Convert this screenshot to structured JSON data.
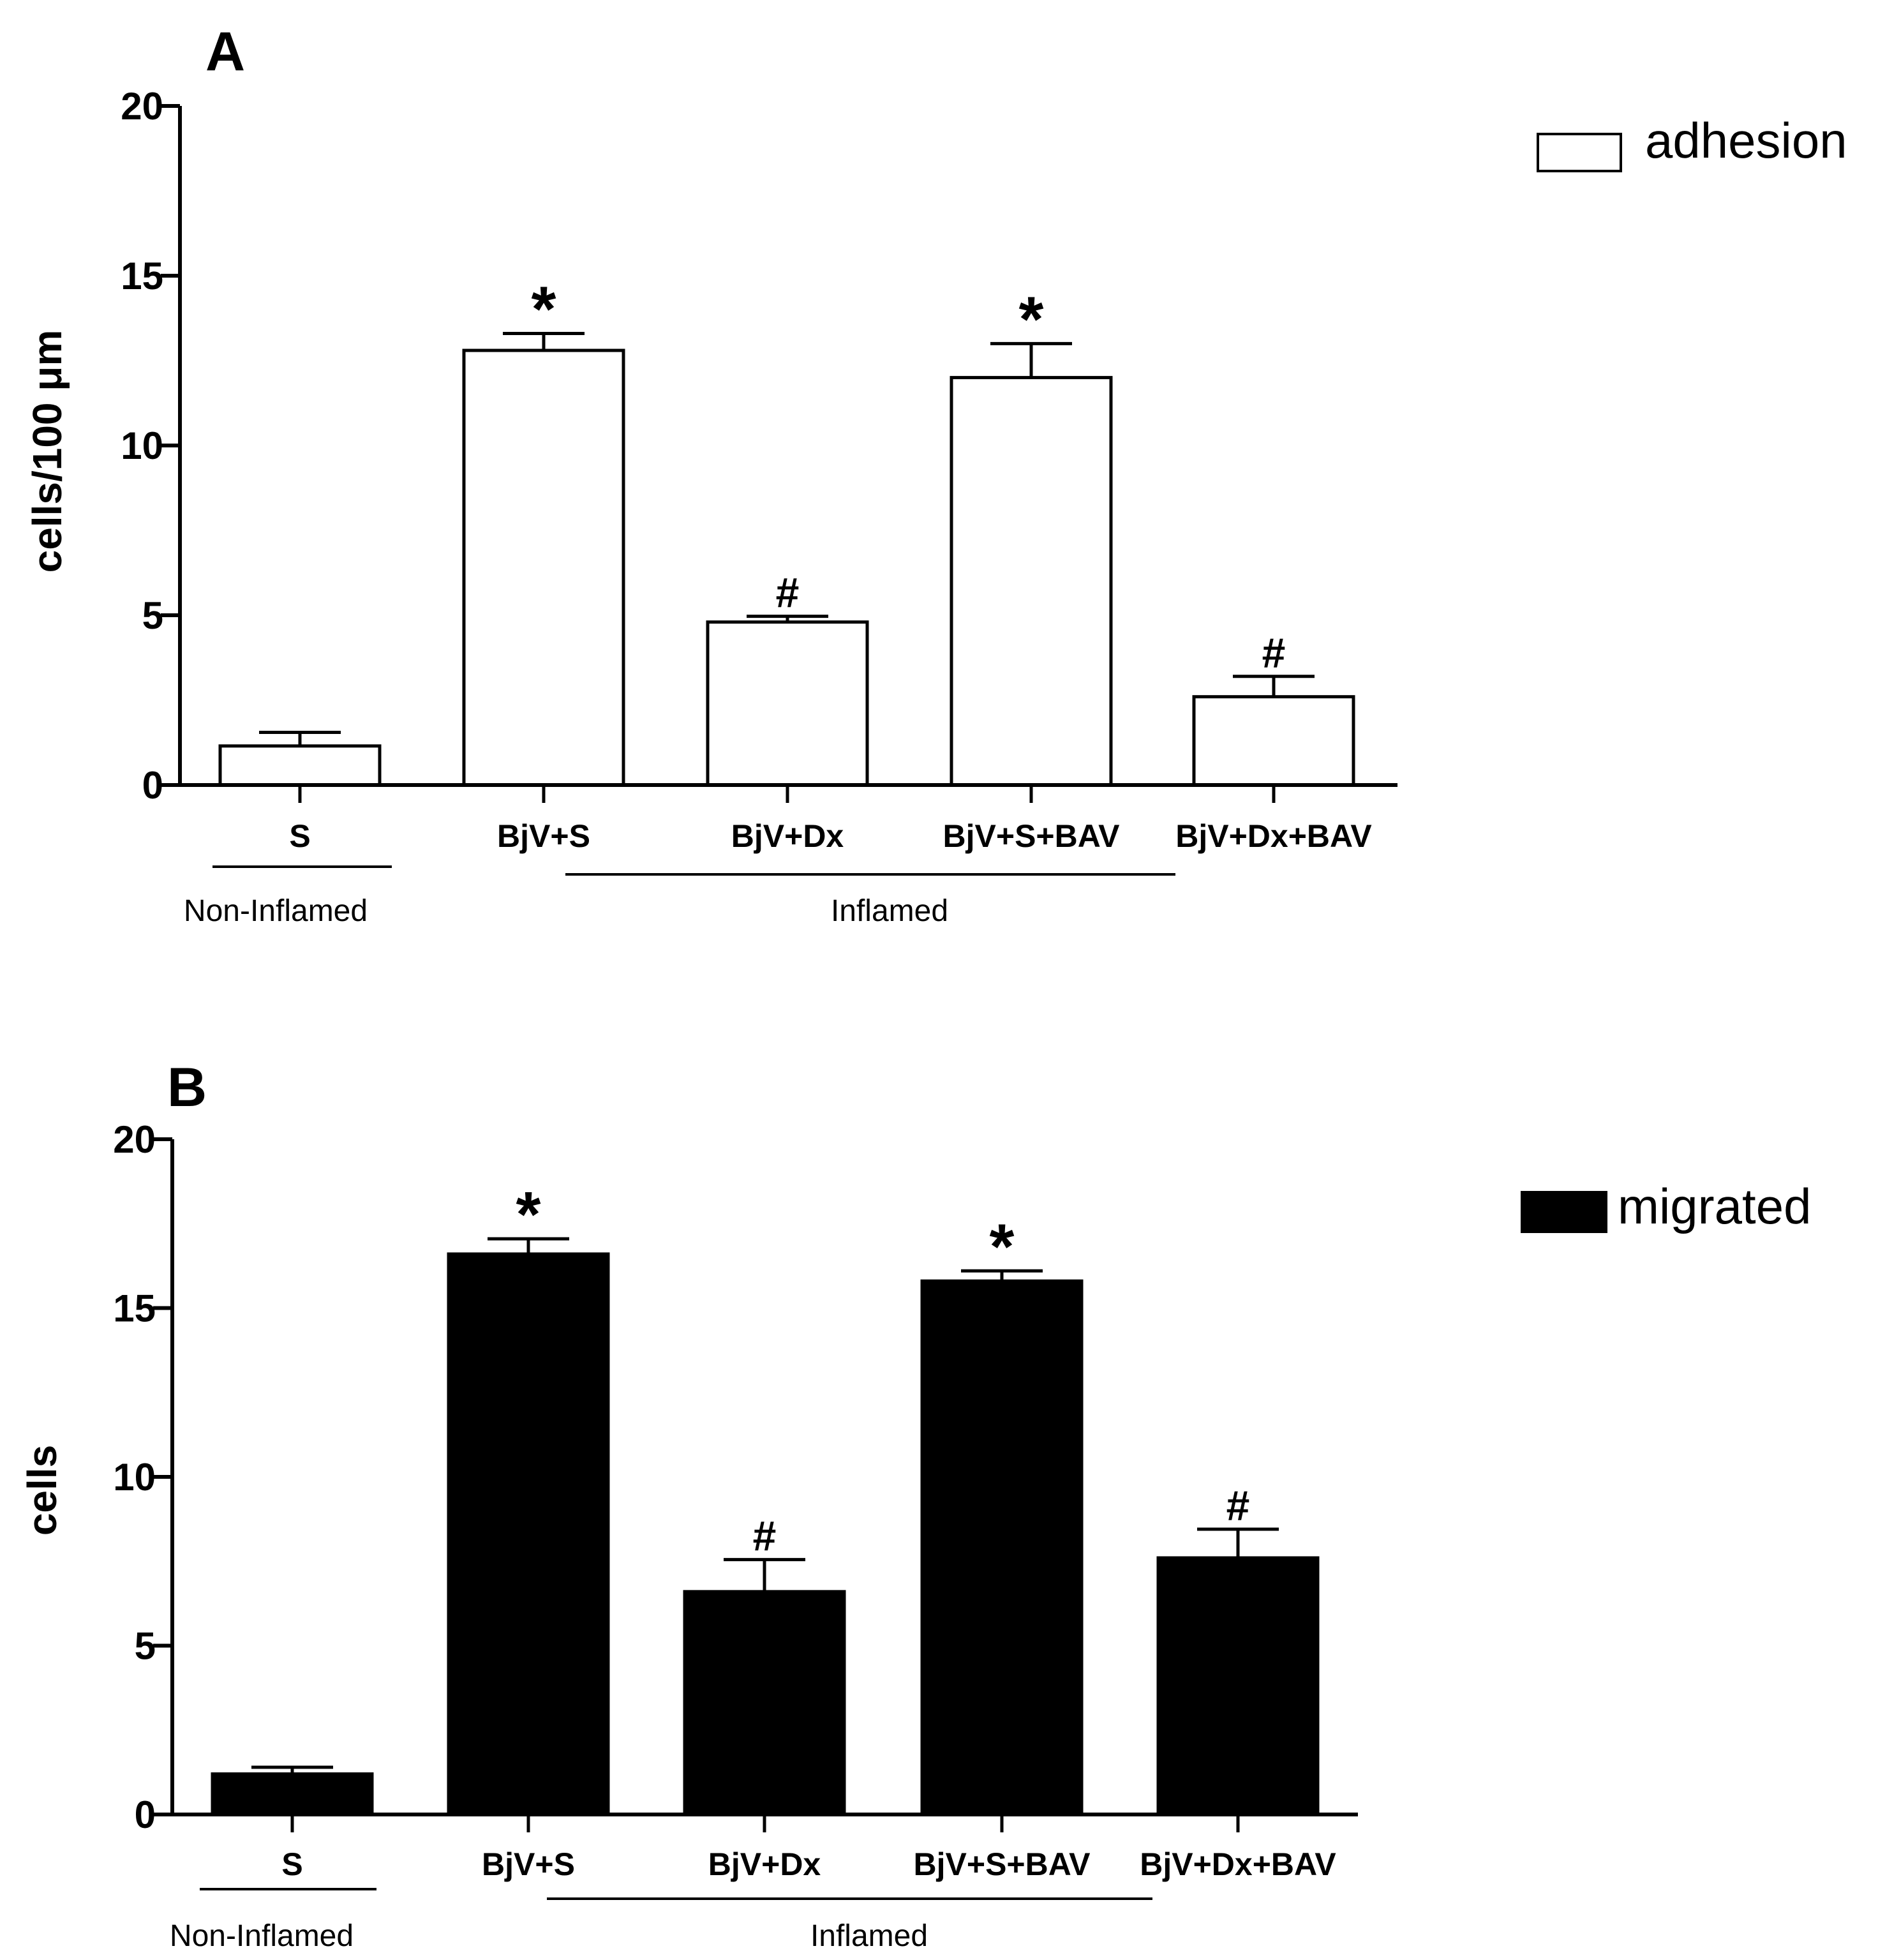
{
  "figure": {
    "panels": [
      {
        "panel_label": "A",
        "legend_label": "adhesion",
        "legend_fill": "#ffffff",
        "group_labels": {
          "non_inflamed": "Non-Inflamed",
          "inflamed": "Inflamed"
        }
      },
      {
        "panel_label": "B",
        "legend_label": "migrated",
        "legend_fill": "#000000",
        "group_labels": {
          "non_inflamed": "Non-Inflamed",
          "inflamed": "Inflamed"
        }
      }
    ]
  },
  "chart_data": [
    {
      "type": "bar",
      "title": "A",
      "xlabel": "",
      "ylabel": "cells/100 μm",
      "ylim": [
        0,
        20
      ],
      "yticks": [
        0,
        5,
        10,
        15,
        20
      ],
      "categories": [
        "S",
        "BjV+S",
        "BjV+Dx",
        "BjV+S+BAV",
        "BjV+Dx+BAV"
      ],
      "series": [
        {
          "name": "adhesion",
          "color": "#ffffff",
          "values": [
            1.15,
            12.8,
            4.8,
            12.0,
            2.6
          ],
          "errors": [
            0.4,
            0.5,
            0.17,
            1.0,
            0.6
          ]
        }
      ],
      "annotations": [
        "",
        "*",
        "#",
        "*",
        "#"
      ]
    },
    {
      "type": "bar",
      "title": "B",
      "xlabel": "",
      "ylabel": "cells",
      "ylim": [
        0,
        20
      ],
      "yticks": [
        0,
        5,
        10,
        15,
        20
      ],
      "categories": [
        "S",
        "BjV+S",
        "BjV+Dx",
        "BjV+S+BAV",
        "BjV+Dx+BAV"
      ],
      "series": [
        {
          "name": "migrated",
          "color": "#000000",
          "values": [
            1.2,
            16.6,
            6.6,
            15.8,
            7.6
          ],
          "errors": [
            0.2,
            0.45,
            0.95,
            0.3,
            0.85
          ]
        }
      ],
      "annotations": [
        "",
        "*",
        "#",
        "*",
        "#"
      ]
    }
  ]
}
